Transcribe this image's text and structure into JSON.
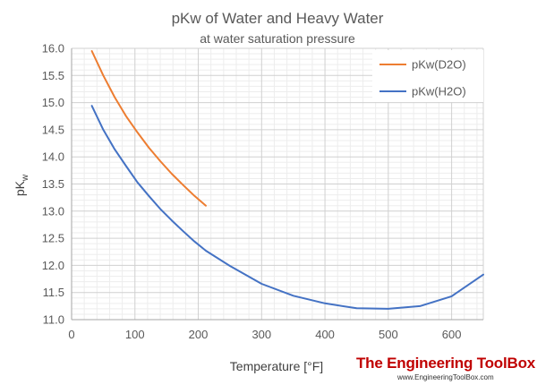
{
  "chart_data": {
    "type": "line",
    "title": "pKw of Water and Heavy Water",
    "subtitle": "at water saturation pressure",
    "xlabel": "Temperature [°F]",
    "ylabel": "pK",
    "ylabel_sub": "w",
    "xlim": [
      0,
      650
    ],
    "ylim": [
      11.0,
      16.0
    ],
    "xticks": [
      0,
      100,
      200,
      300,
      400,
      500,
      600
    ],
    "yticks": [
      11.0,
      11.5,
      12.0,
      12.5,
      13.0,
      13.5,
      14.0,
      14.5,
      15.0,
      15.5,
      16.0
    ],
    "ytick_labels": [
      "11.0",
      "11.5",
      "12.0",
      "12.5",
      "13.0",
      "13.5",
      "14.0",
      "14.5",
      "15.0",
      "15.5",
      "16.0"
    ],
    "grid": true,
    "legend_position": "top-right",
    "series": [
      {
        "name": "pKw(D2O)",
        "color": "#ed7d31",
        "x": [
          32,
          50,
          68,
          86,
          104,
          122,
          140,
          158,
          176,
          194,
          212
        ],
        "y": [
          15.95,
          15.5,
          15.1,
          14.75,
          14.45,
          14.17,
          13.92,
          13.69,
          13.48,
          13.28,
          13.1
        ]
      },
      {
        "name": "pKw(H2O)",
        "color": "#4472c4",
        "x": [
          32,
          50,
          68,
          86,
          104,
          122,
          140,
          158,
          176,
          194,
          212,
          250,
          300,
          350,
          400,
          450,
          500,
          550,
          600,
          650
        ],
        "y": [
          14.94,
          14.5,
          14.14,
          13.83,
          13.53,
          13.28,
          13.04,
          12.83,
          12.63,
          12.44,
          12.27,
          11.99,
          11.66,
          11.44,
          11.3,
          11.21,
          11.2,
          11.25,
          11.43,
          11.83
        ]
      }
    ]
  },
  "branding": {
    "name": "The Engineering ToolBox",
    "url": "www.EngineeringToolBox.com"
  }
}
